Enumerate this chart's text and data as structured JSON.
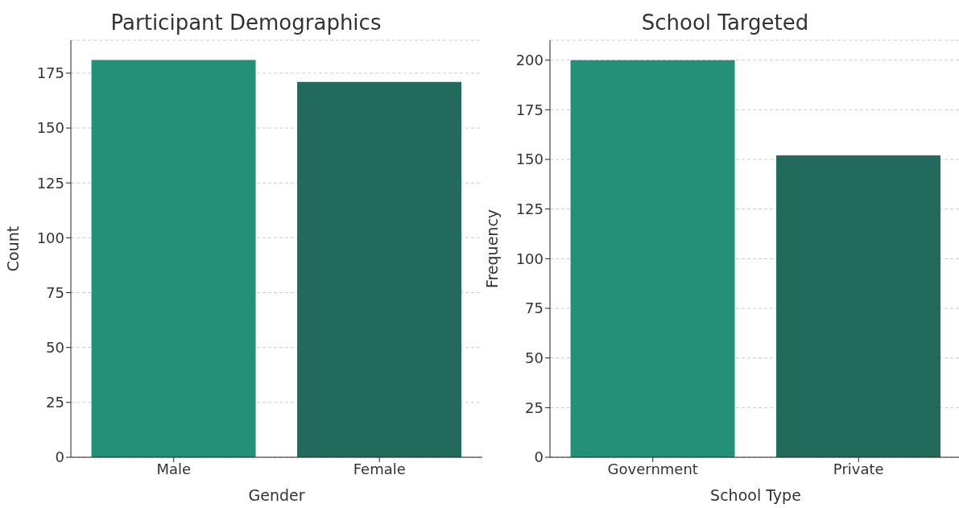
{
  "chart_data": [
    {
      "type": "bar",
      "title": "Participant Demographics",
      "xlabel": "Gender",
      "ylabel": "Count",
      "categories": [
        "Male",
        "Female"
      ],
      "values": [
        181,
        171
      ],
      "colors": [
        "#239077",
        "#226b5c"
      ],
      "ylim": [
        0,
        190
      ],
      "yticks": [
        0,
        25,
        50,
        75,
        100,
        125,
        150,
        175
      ],
      "grid": "y"
    },
    {
      "type": "bar",
      "title": "School Targeted",
      "xlabel": "School Type",
      "ylabel": "Frequency",
      "categories": [
        "Government",
        "Private"
      ],
      "values": [
        200,
        152
      ],
      "colors": [
        "#239077",
        "#226b5c"
      ],
      "ylim": [
        0,
        210
      ],
      "yticks": [
        0,
        25,
        50,
        75,
        100,
        125,
        150,
        175,
        200
      ],
      "grid": "y"
    }
  ]
}
